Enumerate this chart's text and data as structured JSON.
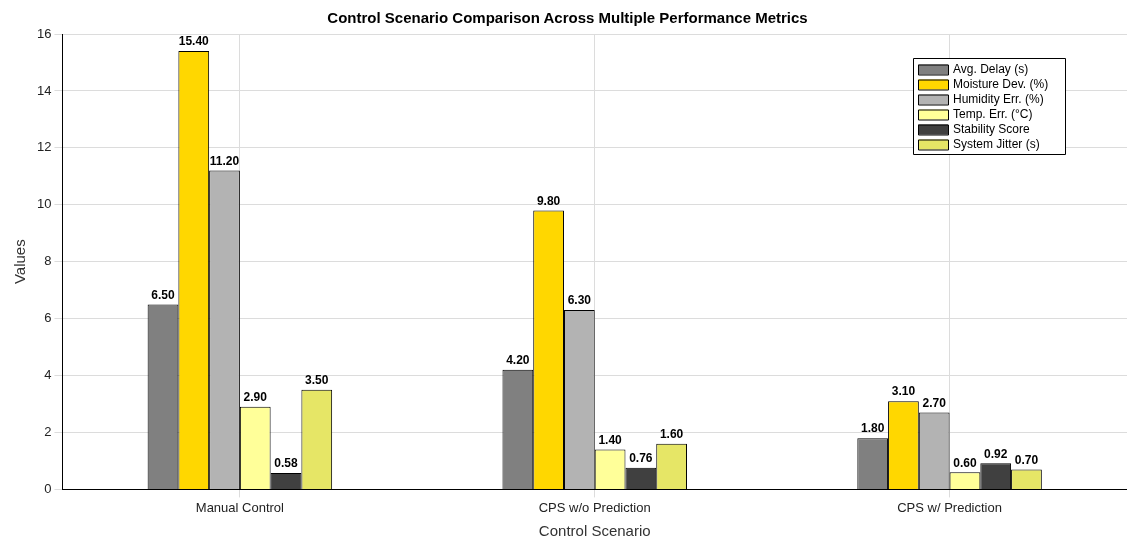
{
  "chart_data": {
    "type": "bar",
    "title": "Control Scenario Comparison Across Multiple Performance Metrics",
    "xlabel": "Control Scenario",
    "ylabel": "Values",
    "categories": [
      "Manual Control",
      "CPS w/o Prediction",
      "CPS w/ Prediction"
    ],
    "series": [
      {
        "name": "Avg. Delay (s)",
        "color": "#808080",
        "values": [
          6.5,
          4.2,
          1.8
        ],
        "value_labels": [
          "6.50",
          "4.20",
          "1.80"
        ]
      },
      {
        "name": "Moisture Dev. (%)",
        "color": "#ffd700",
        "values": [
          15.4,
          9.8,
          3.1
        ],
        "value_labels": [
          "15.40",
          "9.80",
          "3.10"
        ]
      },
      {
        "name": "Humidity Err. (%)",
        "color": "#b3b3b3",
        "values": [
          11.2,
          6.3,
          2.7
        ],
        "value_labels": [
          "11.20",
          "6.30",
          "2.70"
        ]
      },
      {
        "name": "Temp. Err. (°C)",
        "color": "#ffff99",
        "values": [
          2.9,
          1.4,
          0.6
        ],
        "value_labels": [
          "2.90",
          "1.40",
          "0.60"
        ]
      },
      {
        "name": "Stability Score",
        "color": "#404040",
        "values": [
          0.58,
          0.76,
          0.92
        ],
        "value_labels": [
          "0.58",
          "0.76",
          "0.92"
        ]
      },
      {
        "name": "System Jitter (s)",
        "color": "#e6e666",
        "values": [
          3.5,
          1.6,
          0.7
        ],
        "value_labels": [
          "3.50",
          "1.60",
          "0.70"
        ]
      }
    ],
    "ylim": [
      0,
      16
    ],
    "yticks": [
      0,
      2,
      4,
      6,
      8,
      10,
      12,
      14,
      16
    ],
    "grid": true,
    "legend": "top right"
  }
}
